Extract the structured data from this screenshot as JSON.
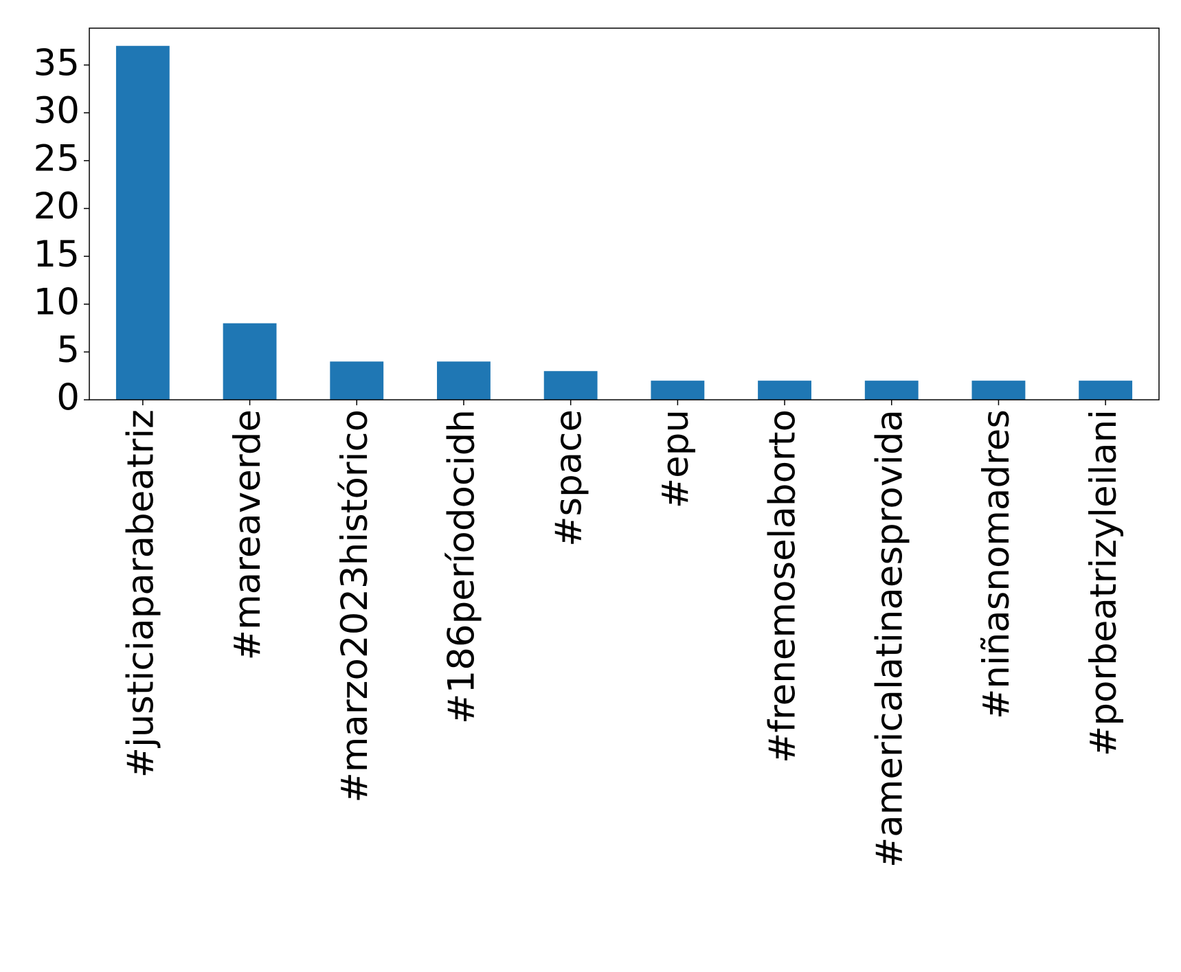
{
  "chart_data": {
    "type": "bar",
    "categories": [
      "#justiciaparabeatriz",
      "#mareaverde",
      "#marzo2023histórico",
      "#186períodocidh",
      "#space",
      "#epu",
      "#frenemoselaborto",
      "#americalatinaesprovida",
      "#niñasnomadres",
      "#porbeatrizyleilani"
    ],
    "values": [
      37,
      8,
      4,
      4,
      3,
      2,
      2,
      2,
      2,
      2
    ],
    "color": "#1f77b4",
    "ylim": [
      0,
      38.85
    ],
    "yticks": [
      0,
      5,
      10,
      15,
      20,
      25,
      30,
      35
    ],
    "grid": false
  }
}
